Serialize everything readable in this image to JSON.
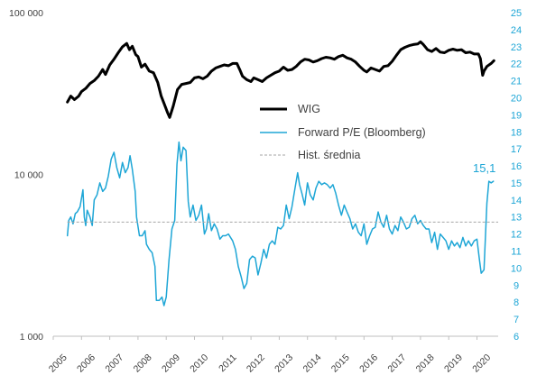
{
  "chart_data": {
    "type": "line",
    "title": "",
    "x_start_year": 2005,
    "x_end_year": 2020.75,
    "x_tick_labels": [
      "2005",
      "2006",
      "2007",
      "2008",
      "2009",
      "2010",
      "2011",
      "2012",
      "2013",
      "2014",
      "2015",
      "2016",
      "2017",
      "2018",
      "2019",
      "2020"
    ],
    "left_axis": {
      "scale": "log",
      "ylim": [
        1000,
        100000
      ],
      "tick_values": [
        1000,
        10000,
        100000
      ],
      "tick_labels": [
        "1 000",
        "10 000",
        "100 000"
      ]
    },
    "right_axis": {
      "scale": "linear",
      "ylim": [
        6,
        25
      ],
      "ticks": [
        6,
        7,
        8,
        9,
        10,
        11,
        12,
        13,
        14,
        15,
        16,
        17,
        18,
        19,
        20,
        21,
        22,
        23,
        24,
        25
      ]
    },
    "legend": [
      {
        "key": "wig",
        "label": "WIG"
      },
      {
        "key": "pe",
        "label": "Forward P/E (Bloomberg)"
      },
      {
        "key": "avg",
        "label": "Hist. średnia"
      }
    ],
    "annotation": {
      "label": "15,1",
      "series": "pe"
    },
    "series": [
      {
        "key": "wig",
        "name": "WIG",
        "axis": "left",
        "color": "#000000",
        "points": [
          [
            2005.5,
            28000
          ],
          [
            2005.62,
            30500
          ],
          [
            2005.75,
            29000
          ],
          [
            2005.9,
            30500
          ],
          [
            2006.0,
            32500
          ],
          [
            2006.15,
            34000
          ],
          [
            2006.3,
            36500
          ],
          [
            2006.45,
            38000
          ],
          [
            2006.6,
            40500
          ],
          [
            2006.75,
            44500
          ],
          [
            2006.85,
            41500
          ],
          [
            2007.0,
            47500
          ],
          [
            2007.15,
            51500
          ],
          [
            2007.3,
            56500
          ],
          [
            2007.45,
            61500
          ],
          [
            2007.6,
            64500
          ],
          [
            2007.7,
            59000
          ],
          [
            2007.8,
            62000
          ],
          [
            2007.92,
            55000
          ],
          [
            2008.0,
            53500
          ],
          [
            2008.12,
            46000
          ],
          [
            2008.25,
            48000
          ],
          [
            2008.4,
            43500
          ],
          [
            2008.55,
            42500
          ],
          [
            2008.7,
            37000
          ],
          [
            2008.82,
            30500
          ],
          [
            2008.92,
            27500
          ],
          [
            2009.05,
            24000
          ],
          [
            2009.12,
            22500
          ],
          [
            2009.25,
            26500
          ],
          [
            2009.4,
            33500
          ],
          [
            2009.55,
            36000
          ],
          [
            2009.7,
            36500
          ],
          [
            2009.85,
            37000
          ],
          [
            2010.0,
            39500
          ],
          [
            2010.15,
            40000
          ],
          [
            2010.3,
            39000
          ],
          [
            2010.45,
            40500
          ],
          [
            2010.6,
            43500
          ],
          [
            2010.75,
            45500
          ],
          [
            2010.9,
            46500
          ],
          [
            2011.05,
            47500
          ],
          [
            2011.2,
            47000
          ],
          [
            2011.35,
            48500
          ],
          [
            2011.5,
            48500
          ],
          [
            2011.6,
            44500
          ],
          [
            2011.7,
            40500
          ],
          [
            2011.85,
            38500
          ],
          [
            2012.0,
            37500
          ],
          [
            2012.1,
            39500
          ],
          [
            2012.25,
            38500
          ],
          [
            2012.4,
            37500
          ],
          [
            2012.55,
            39500
          ],
          [
            2012.7,
            41000
          ],
          [
            2012.85,
            42500
          ],
          [
            2013.0,
            43500
          ],
          [
            2013.15,
            46000
          ],
          [
            2013.3,
            44000
          ],
          [
            2013.45,
            44500
          ],
          [
            2013.6,
            46500
          ],
          [
            2013.75,
            49500
          ],
          [
            2013.9,
            51500
          ],
          [
            2014.05,
            51000
          ],
          [
            2014.2,
            49500
          ],
          [
            2014.35,
            50500
          ],
          [
            2014.5,
            52000
          ],
          [
            2014.65,
            53000
          ],
          [
            2014.8,
            52500
          ],
          [
            2014.95,
            51500
          ],
          [
            2015.1,
            53500
          ],
          [
            2015.25,
            54500
          ],
          [
            2015.4,
            52500
          ],
          [
            2015.55,
            51500
          ],
          [
            2015.7,
            49500
          ],
          [
            2015.85,
            46500
          ],
          [
            2016.0,
            44000
          ],
          [
            2016.1,
            43000
          ],
          [
            2016.25,
            45500
          ],
          [
            2016.4,
            44500
          ],
          [
            2016.55,
            43500
          ],
          [
            2016.7,
            46500
          ],
          [
            2016.85,
            47000
          ],
          [
            2017.0,
            50000
          ],
          [
            2017.15,
            54500
          ],
          [
            2017.3,
            59000
          ],
          [
            2017.45,
            61000
          ],
          [
            2017.6,
            62500
          ],
          [
            2017.75,
            63500
          ],
          [
            2017.9,
            64000
          ],
          [
            2018.0,
            66000
          ],
          [
            2018.1,
            63500
          ],
          [
            2018.25,
            59000
          ],
          [
            2018.4,
            57500
          ],
          [
            2018.55,
            60000
          ],
          [
            2018.7,
            57000
          ],
          [
            2018.85,
            56500
          ],
          [
            2019.0,
            58500
          ],
          [
            2019.15,
            59500
          ],
          [
            2019.3,
            58500
          ],
          [
            2019.45,
            59000
          ],
          [
            2019.6,
            56500
          ],
          [
            2019.75,
            57000
          ],
          [
            2019.9,
            55500
          ],
          [
            2020.05,
            55500
          ],
          [
            2020.12,
            52000
          ],
          [
            2020.2,
            41000
          ],
          [
            2020.25,
            43500
          ],
          [
            2020.35,
            46500
          ],
          [
            2020.5,
            48500
          ],
          [
            2020.6,
            50500
          ]
        ]
      },
      {
        "key": "pe",
        "name": "Forward P/E (Bloomberg)",
        "axis": "right",
        "color": "#1ea6d6",
        "points": [
          [
            2005.5,
            11.9
          ],
          [
            2005.55,
            12.8
          ],
          [
            2005.62,
            13.0
          ],
          [
            2005.7,
            12.6
          ],
          [
            2005.78,
            13.2
          ],
          [
            2005.85,
            13.3
          ],
          [
            2005.95,
            13.6
          ],
          [
            2006.05,
            14.6
          ],
          [
            2006.1,
            13.0
          ],
          [
            2006.15,
            12.5
          ],
          [
            2006.2,
            13.4
          ],
          [
            2006.3,
            13.0
          ],
          [
            2006.38,
            12.5
          ],
          [
            2006.45,
            14.0
          ],
          [
            2006.55,
            14.3
          ],
          [
            2006.65,
            15.0
          ],
          [
            2006.75,
            14.5
          ],
          [
            2006.85,
            14.7
          ],
          [
            2006.95,
            15.4
          ],
          [
            2007.05,
            16.4
          ],
          [
            2007.15,
            16.8
          ],
          [
            2007.25,
            15.9
          ],
          [
            2007.35,
            15.3
          ],
          [
            2007.45,
            16.2
          ],
          [
            2007.55,
            15.6
          ],
          [
            2007.65,
            15.9
          ],
          [
            2007.72,
            16.6
          ],
          [
            2007.8,
            15.8
          ],
          [
            2007.9,
            14.5
          ],
          [
            2007.95,
            13.0
          ],
          [
            2008.05,
            11.9
          ],
          [
            2008.15,
            11.9
          ],
          [
            2008.25,
            12.2
          ],
          [
            2008.3,
            11.4
          ],
          [
            2008.4,
            11.1
          ],
          [
            2008.5,
            10.9
          ],
          [
            2008.6,
            10.1
          ],
          [
            2008.65,
            8.1
          ],
          [
            2008.75,
            8.1
          ],
          [
            2008.85,
            8.3
          ],
          [
            2008.92,
            7.8
          ],
          [
            2009.0,
            8.3
          ],
          [
            2009.1,
            10.5
          ],
          [
            2009.2,
            12.3
          ],
          [
            2009.3,
            12.8
          ],
          [
            2009.38,
            16.1
          ],
          [
            2009.45,
            17.4
          ],
          [
            2009.52,
            16.3
          ],
          [
            2009.6,
            17.1
          ],
          [
            2009.7,
            16.9
          ],
          [
            2009.78,
            13.9
          ],
          [
            2009.85,
            13.0
          ],
          [
            2009.95,
            13.7
          ],
          [
            2010.05,
            12.8
          ],
          [
            2010.15,
            13.1
          ],
          [
            2010.25,
            13.7
          ],
          [
            2010.35,
            12.0
          ],
          [
            2010.42,
            12.3
          ],
          [
            2010.5,
            13.2
          ],
          [
            2010.6,
            12.2
          ],
          [
            2010.7,
            12.6
          ],
          [
            2010.8,
            12.3
          ],
          [
            2010.9,
            11.7
          ],
          [
            2011.0,
            11.9
          ],
          [
            2011.1,
            11.9
          ],
          [
            2011.2,
            12.0
          ],
          [
            2011.35,
            11.6
          ],
          [
            2011.45,
            11.1
          ],
          [
            2011.55,
            10.1
          ],
          [
            2011.65,
            9.5
          ],
          [
            2011.75,
            8.8
          ],
          [
            2011.85,
            9.1
          ],
          [
            2011.95,
            10.5
          ],
          [
            2012.05,
            10.7
          ],
          [
            2012.15,
            10.6
          ],
          [
            2012.25,
            9.6
          ],
          [
            2012.35,
            10.3
          ],
          [
            2012.45,
            11.1
          ],
          [
            2012.55,
            10.6
          ],
          [
            2012.65,
            11.4
          ],
          [
            2012.75,
            11.6
          ],
          [
            2012.85,
            11.4
          ],
          [
            2012.95,
            12.4
          ],
          [
            2013.05,
            12.3
          ],
          [
            2013.15,
            12.5
          ],
          [
            2013.25,
            13.7
          ],
          [
            2013.35,
            12.9
          ],
          [
            2013.45,
            13.6
          ],
          [
            2013.55,
            14.6
          ],
          [
            2013.65,
            15.6
          ],
          [
            2013.72,
            14.9
          ],
          [
            2013.8,
            14.4
          ],
          [
            2013.9,
            13.7
          ],
          [
            2014.0,
            15.0
          ],
          [
            2014.1,
            14.3
          ],
          [
            2014.2,
            14.0
          ],
          [
            2014.3,
            14.7
          ],
          [
            2014.4,
            15.1
          ],
          [
            2014.5,
            14.9
          ],
          [
            2014.6,
            15.0
          ],
          [
            2014.7,
            14.9
          ],
          [
            2014.8,
            14.7
          ],
          [
            2014.9,
            14.9
          ],
          [
            2015.0,
            14.4
          ],
          [
            2015.1,
            13.7
          ],
          [
            2015.2,
            13.1
          ],
          [
            2015.3,
            13.7
          ],
          [
            2015.4,
            13.3
          ],
          [
            2015.5,
            12.9
          ],
          [
            2015.6,
            12.3
          ],
          [
            2015.7,
            12.6
          ],
          [
            2015.8,
            12.1
          ],
          [
            2015.9,
            11.9
          ],
          [
            2016.0,
            12.6
          ],
          [
            2016.1,
            11.4
          ],
          [
            2016.2,
            11.9
          ],
          [
            2016.3,
            12.3
          ],
          [
            2016.4,
            12.4
          ],
          [
            2016.5,
            13.3
          ],
          [
            2016.6,
            12.7
          ],
          [
            2016.7,
            12.4
          ],
          [
            2016.8,
            13.1
          ],
          [
            2016.9,
            12.3
          ],
          [
            2017.0,
            12.0
          ],
          [
            2017.1,
            12.5
          ],
          [
            2017.2,
            12.2
          ],
          [
            2017.3,
            13.0
          ],
          [
            2017.4,
            12.7
          ],
          [
            2017.5,
            12.3
          ],
          [
            2017.6,
            12.4
          ],
          [
            2017.7,
            12.9
          ],
          [
            2017.8,
            13.1
          ],
          [
            2017.9,
            12.6
          ],
          [
            2018.0,
            12.8
          ],
          [
            2018.1,
            12.5
          ],
          [
            2018.2,
            12.3
          ],
          [
            2018.3,
            12.3
          ],
          [
            2018.4,
            11.5
          ],
          [
            2018.5,
            12.1
          ],
          [
            2018.6,
            11.1
          ],
          [
            2018.7,
            12.0
          ],
          [
            2018.8,
            11.8
          ],
          [
            2018.9,
            11.6
          ],
          [
            2019.0,
            11.1
          ],
          [
            2019.1,
            11.6
          ],
          [
            2019.2,
            11.3
          ],
          [
            2019.3,
            11.5
          ],
          [
            2019.4,
            11.2
          ],
          [
            2019.5,
            11.8
          ],
          [
            2019.6,
            11.3
          ],
          [
            2019.7,
            11.6
          ],
          [
            2019.8,
            11.3
          ],
          [
            2019.9,
            11.6
          ],
          [
            2020.0,
            11.7
          ],
          [
            2020.08,
            10.6
          ],
          [
            2020.15,
            9.7
          ],
          [
            2020.25,
            9.9
          ],
          [
            2020.35,
            13.8
          ],
          [
            2020.42,
            15.1
          ],
          [
            2020.5,
            15.0
          ],
          [
            2020.58,
            15.1
          ]
        ]
      },
      {
        "key": "avg",
        "name": "Hist. średnia",
        "axis": "right",
        "color": "#a6a6a6",
        "dashed": true,
        "value": 12.7,
        "x_range": [
          2005.5,
          2020.75
        ]
      }
    ]
  }
}
